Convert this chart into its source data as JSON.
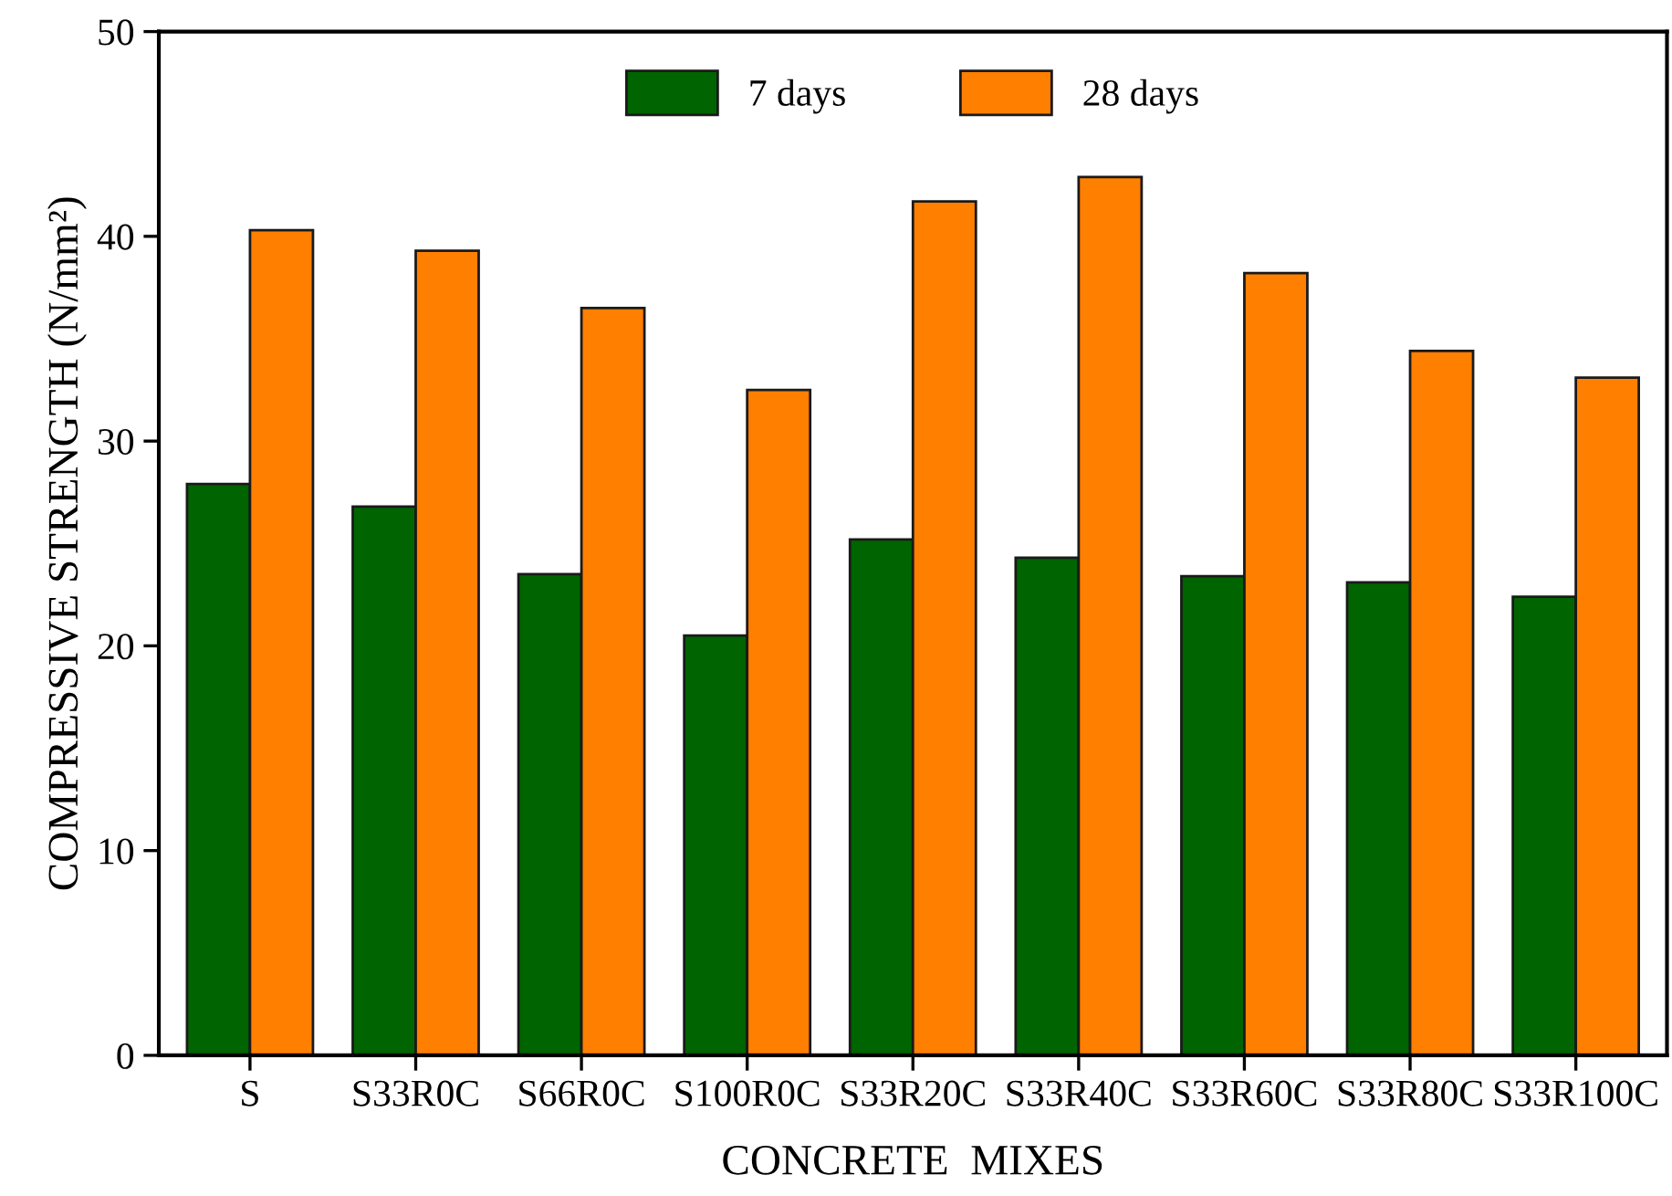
{
  "chart_data": {
    "type": "bar",
    "xlabel": "CONCRETE  MIXES",
    "ylabel": "COMPRESSIVE STRENGTH (N/mm²)",
    "categories": [
      "S",
      "S33R0C",
      "S66R0C",
      "S100R0C",
      "S33R20C",
      "S33R40C",
      "S33R60C",
      "S33R80C",
      "S33R100C"
    ],
    "series": [
      {
        "name": "7 days",
        "color": "#006400",
        "values": [
          27.9,
          26.8,
          23.5,
          20.5,
          25.2,
          24.3,
          23.4,
          23.1,
          22.4
        ]
      },
      {
        "name": "28 days",
        "color": "#ff7f00",
        "values": [
          40.3,
          39.3,
          36.5,
          32.5,
          41.7,
          42.9,
          38.2,
          34.4,
          33.1
        ]
      }
    ],
    "ylim": [
      0,
      50
    ],
    "yticks": [
      0,
      10,
      20,
      30,
      40,
      50
    ],
    "grid": false,
    "legend": "top"
  }
}
